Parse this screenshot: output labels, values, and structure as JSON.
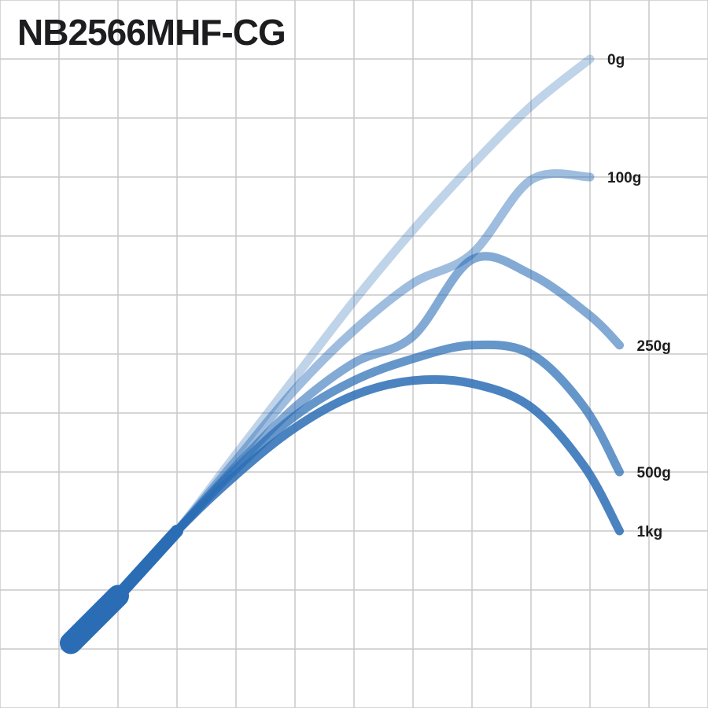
{
  "chart_data": {
    "type": "line",
    "title": "NB2566MHF-CG",
    "grid": true,
    "x_range": [
      0,
      12
    ],
    "y_range": [
      0,
      12
    ],
    "base_color": "#2a6db5",
    "series": [
      {
        "name": "0g",
        "opacity": 0.3,
        "points": [
          [
            0.2,
            0.1
          ],
          [
            1,
            0.9
          ],
          [
            2,
            2
          ],
          [
            3,
            3.3
          ],
          [
            4,
            4.6
          ],
          [
            5,
            5.9
          ],
          [
            6,
            7.1
          ],
          [
            7,
            8.2
          ],
          [
            8,
            9.2
          ],
          [
            9,
            10
          ]
        ]
      },
      {
        "name": "100g",
        "opacity": 0.45,
        "points": [
          [
            0.2,
            0.1
          ],
          [
            1,
            0.9
          ],
          [
            2,
            2
          ],
          [
            3,
            3.2
          ],
          [
            4,
            4.4
          ],
          [
            5,
            5.4
          ],
          [
            6,
            6.2
          ],
          [
            7,
            6.7
          ],
          [
            8,
            7.95
          ],
          [
            9,
            8
          ]
        ]
      },
      {
        "name": "250g",
        "opacity": 0.58,
        "points": [
          [
            0.2,
            0.1
          ],
          [
            1,
            0.9
          ],
          [
            2,
            2
          ],
          [
            3,
            3.1
          ],
          [
            4,
            4.1
          ],
          [
            5,
            4.85
          ],
          [
            6,
            5.3
          ],
          [
            7,
            6.6
          ],
          [
            8,
            6.35
          ],
          [
            9,
            5.65
          ],
          [
            9.5,
            5.15
          ]
        ]
      },
      {
        "name": "500g",
        "opacity": 0.72,
        "points": [
          [
            0.2,
            0.1
          ],
          [
            1,
            0.9
          ],
          [
            2,
            2
          ],
          [
            3,
            3.05
          ],
          [
            4,
            3.95
          ],
          [
            5,
            4.55
          ],
          [
            6,
            4.92
          ],
          [
            7,
            5.15
          ],
          [
            8,
            5
          ],
          [
            8.9,
            4.1
          ],
          [
            9.5,
            3
          ]
        ]
      },
      {
        "name": "1kg",
        "opacity": 0.85,
        "points": [
          [
            0.2,
            0.1
          ],
          [
            1,
            0.9
          ],
          [
            2,
            2
          ],
          [
            3,
            2.95
          ],
          [
            4,
            3.75
          ],
          [
            5,
            4.3
          ],
          [
            6,
            4.55
          ],
          [
            7,
            4.5
          ],
          [
            8,
            4.1
          ],
          [
            8.9,
            3.1
          ],
          [
            9.5,
            2
          ]
        ]
      }
    ]
  }
}
